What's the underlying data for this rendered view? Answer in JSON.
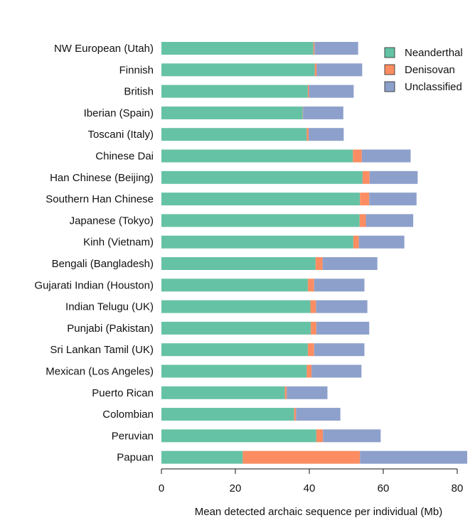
{
  "chart_data": {
    "type": "bar",
    "orientation": "horizontal",
    "stacked": true,
    "xlabel": "Mean detected archaic sequence per individual (Mb)",
    "xlim": [
      0,
      83
    ],
    "xticks": [
      0,
      20,
      40,
      60,
      80
    ],
    "grid": false,
    "legend_position": "top-right",
    "categories": [
      "NW European (Utah)",
      "Finnish",
      "British",
      "Iberian (Spain)",
      "Toscani (Italy)",
      "Chinese Dai",
      "Han Chinese (Beijing)",
      "Southern Han Chinese",
      "Japanese (Tokyo)",
      "Kinh (Vietnam)",
      "Bengali (Bangladesh)",
      "Gujarati Indian (Houston)",
      "Indian Telugu (UK)",
      "Punjabi (Pakistan)",
      "Sri Lankan Tamil (UK)",
      "Mexican (Los Angeles)",
      "Puerto Rican",
      "Colombian",
      "Peruvian",
      "Papuan"
    ],
    "series": [
      {
        "name": "Neanderthal",
        "color": "#66c2a5",
        "values": [
          41.1,
          41.5,
          39.6,
          38.2,
          39.3,
          51.8,
          54.4,
          53.7,
          53.6,
          51.9,
          41.7,
          39.6,
          40.3,
          40.4,
          39.6,
          39.3,
          33.4,
          35.9,
          41.9,
          22.0
        ]
      },
      {
        "name": "Denisovan",
        "color": "#fc8d62",
        "values": [
          0.3,
          0.5,
          0.3,
          0.1,
          0.5,
          2.4,
          1.9,
          2.5,
          1.7,
          1.5,
          1.9,
          1.7,
          1.5,
          1.5,
          1.7,
          1.3,
          0.5,
          0.5,
          1.8,
          31.7
        ]
      },
      {
        "name": "Unclassified",
        "color": "#8da0cb",
        "values": [
          11.8,
          12.3,
          12.1,
          10.9,
          9.5,
          13.2,
          13.0,
          12.8,
          12.8,
          12.3,
          14.8,
          13.6,
          13.9,
          14.3,
          13.6,
          13.5,
          11.0,
          12.0,
          15.6,
          29.0
        ]
      }
    ]
  }
}
